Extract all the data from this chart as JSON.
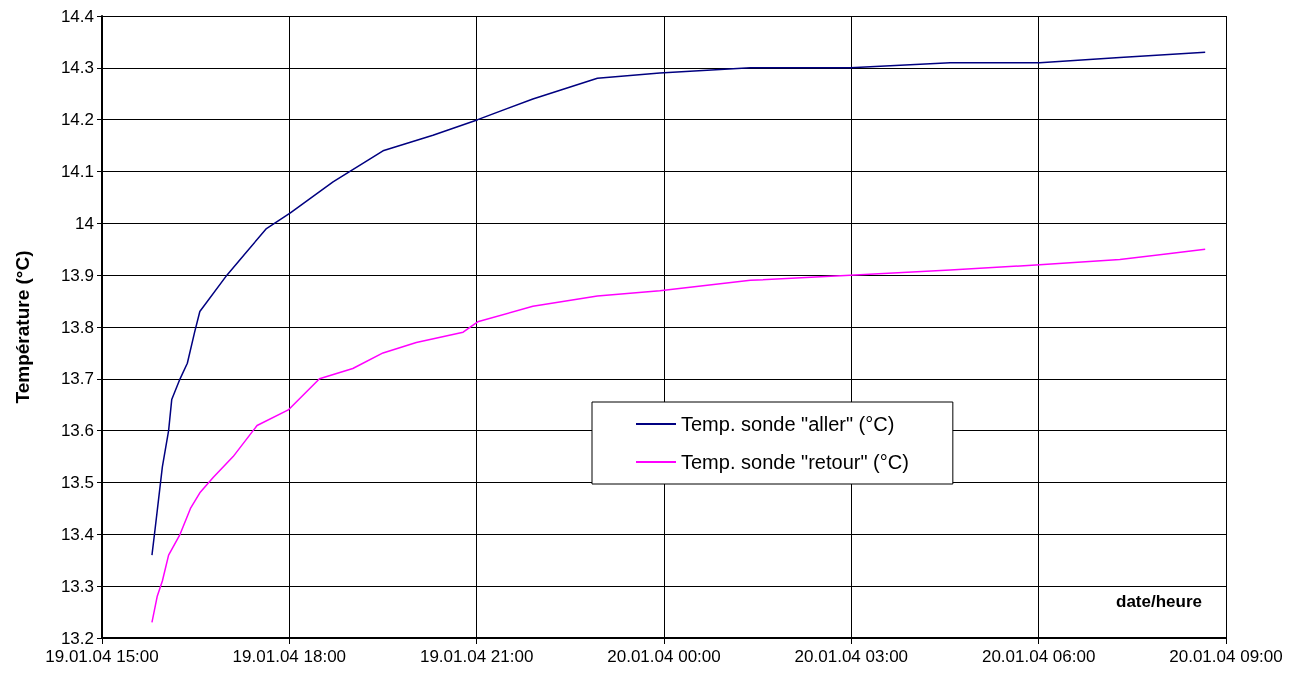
{
  "chart_data": {
    "type": "line",
    "xlabel": "date/heure",
    "ylabel": "Température (°C)",
    "xlim": [
      "--01-19T15:00",
      "--01-20T09:00"
    ],
    "xticks": [
      {
        "value": "--01-19T15:00",
        "label": "19.01.04 15:00"
      },
      {
        "value": "--01-19T18:00",
        "label": "19.01.04 18:00"
      },
      {
        "value": "--01-19T21:00",
        "label": "19.01.04 21:00"
      },
      {
        "value": "--01-20T00:00",
        "label": "20.01.04 00:00"
      },
      {
        "value": "--01-20T03:00",
        "label": "20.01.04 03:00"
      },
      {
        "value": "--01-20T06:00",
        "label": "20.01.04 06:00"
      },
      {
        "value": "--01-20T09:00",
        "label": "20.01.04 09:00"
      }
    ],
    "ylim": [
      13.2,
      14.4
    ],
    "yticks": [
      13.2,
      13.3,
      13.4,
      13.5,
      13.6,
      13.7,
      13.8,
      13.9,
      14,
      14.1,
      14.2,
      14.3,
      14.4
    ],
    "grid": true,
    "legend": "bottom",
    "marker": "none",
    "line_style": "solid",
    "series": [
      {
        "name": "Temp. sonde \"aller\" (°C)",
        "color": "#000080",
        "x": [
          "--01-19T15:48",
          "--01-19T15:51",
          "--01-19T15:58",
          "--01-19T16:04",
          "--01-19T16:07",
          "--01-19T16:15",
          "--01-19T16:22",
          "--01-19T16:29",
          "--01-19T16:34",
          "--01-19T17:00",
          "--01-19T17:38",
          "--01-19T18:01",
          "--01-19T18:42",
          "--01-19T19:30",
          "--01-19T20:18",
          "--01-19T21:01",
          "--01-19T21:54",
          "--01-19T22:56",
          "--01-19T23:56",
          "--01-20T01:23",
          "--01-20T02:59",
          "--01-20T04:35",
          "--01-20T06:01",
          "--01-20T07:18",
          "--01-20T08:40"
        ],
        "values": [
          13.36,
          13.41,
          13.53,
          13.6,
          13.66,
          13.7,
          13.73,
          13.79,
          13.83,
          13.9,
          13.99,
          14.02,
          14.08,
          14.14,
          14.17,
          14.2,
          14.24,
          14.28,
          14.29,
          14.3,
          14.3,
          14.31,
          14.31,
          14.32,
          14.33
        ]
      },
      {
        "name": "Temp. sonde \"retour\" (°C)",
        "color": "#ff00ff",
        "x": [
          "--01-19T15:48",
          "--01-19T15:53",
          "--01-19T15:58",
          "--01-19T16:04",
          "--01-19T16:15",
          "--01-19T16:25",
          "--01-19T16:34",
          "--01-19T16:47",
          "--01-19T17:06",
          "--01-19T17:29",
          "--01-19T17:59",
          "--01-19T18:29",
          "--01-19T19:01",
          "--01-19T19:30",
          "--01-19T20:02",
          "--01-19T20:47",
          "--01-19T21:01",
          "--01-19T21:54",
          "--01-19T22:56",
          "--01-19T23:56",
          "--01-20T01:23",
          "--01-20T02:59",
          "--01-20T04:35",
          "--01-20T06:01",
          "--01-20T07:18",
          "--01-20T08:40"
        ],
        "values": [
          13.23,
          13.28,
          13.31,
          13.36,
          13.4,
          13.45,
          13.48,
          13.51,
          13.55,
          13.61,
          13.64,
          13.7,
          13.72,
          13.75,
          13.77,
          13.79,
          13.81,
          13.84,
          13.86,
          13.87,
          13.89,
          13.9,
          13.91,
          13.92,
          13.93,
          13.95
        ]
      }
    ]
  }
}
